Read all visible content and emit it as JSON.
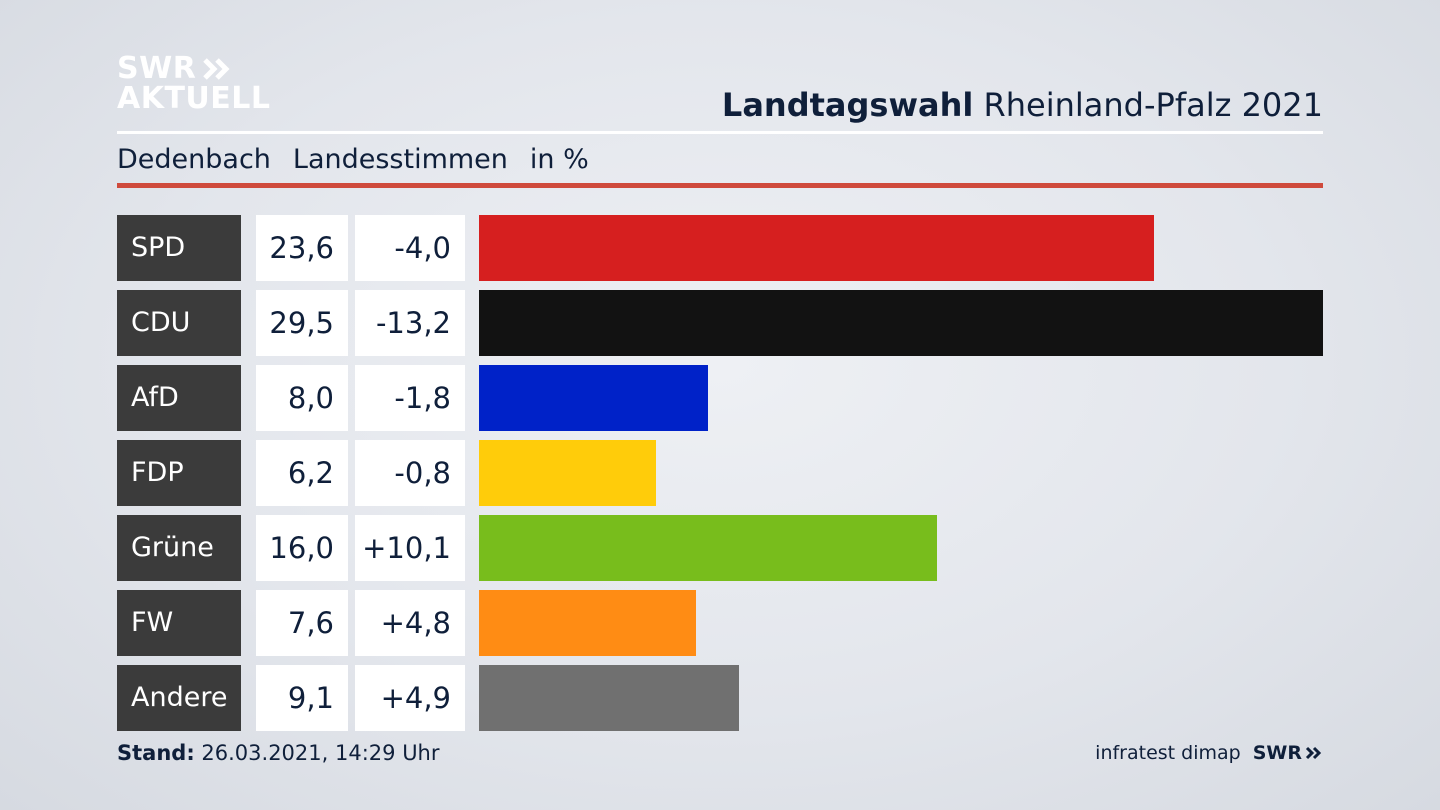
{
  "logo": {
    "line1": "SWR",
    "line2": "AKTUELL"
  },
  "header": {
    "title_bold": "Landtagswahl",
    "title_rest": "Rheinland-Pfalz 2021"
  },
  "subtitle": {
    "place": "Dedenbach",
    "type": "Landesstimmen",
    "unit": "in %"
  },
  "footer": {
    "stand_label": "Stand:",
    "stand_value": "26.03.2021, 14:29 Uhr",
    "source": "infratest dimap",
    "brand": "SWR"
  },
  "chart_data": {
    "type": "bar",
    "orientation": "horizontal",
    "xlim": [
      0,
      29.5
    ],
    "categories": [
      "SPD",
      "CDU",
      "AfD",
      "FDP",
      "Grüne",
      "FW",
      "Andere"
    ],
    "values": [
      23.6,
      29.5,
      8.0,
      6.2,
      16.0,
      7.6,
      9.1
    ],
    "values_label": [
      "23,6",
      "29,5",
      "8,0",
      "6,2",
      "16,0",
      "7,6",
      "9,1"
    ],
    "diff_label": [
      "-4,0",
      "-13,2",
      "-1,8",
      "-0,8",
      "+10,1",
      "+4,8",
      "+4,9"
    ],
    "colors": [
      "#d61f1f",
      "#121212",
      "#0022c8",
      "#ffcc0a",
      "#78bd1c",
      "#ff8c14",
      "#707070"
    ]
  }
}
